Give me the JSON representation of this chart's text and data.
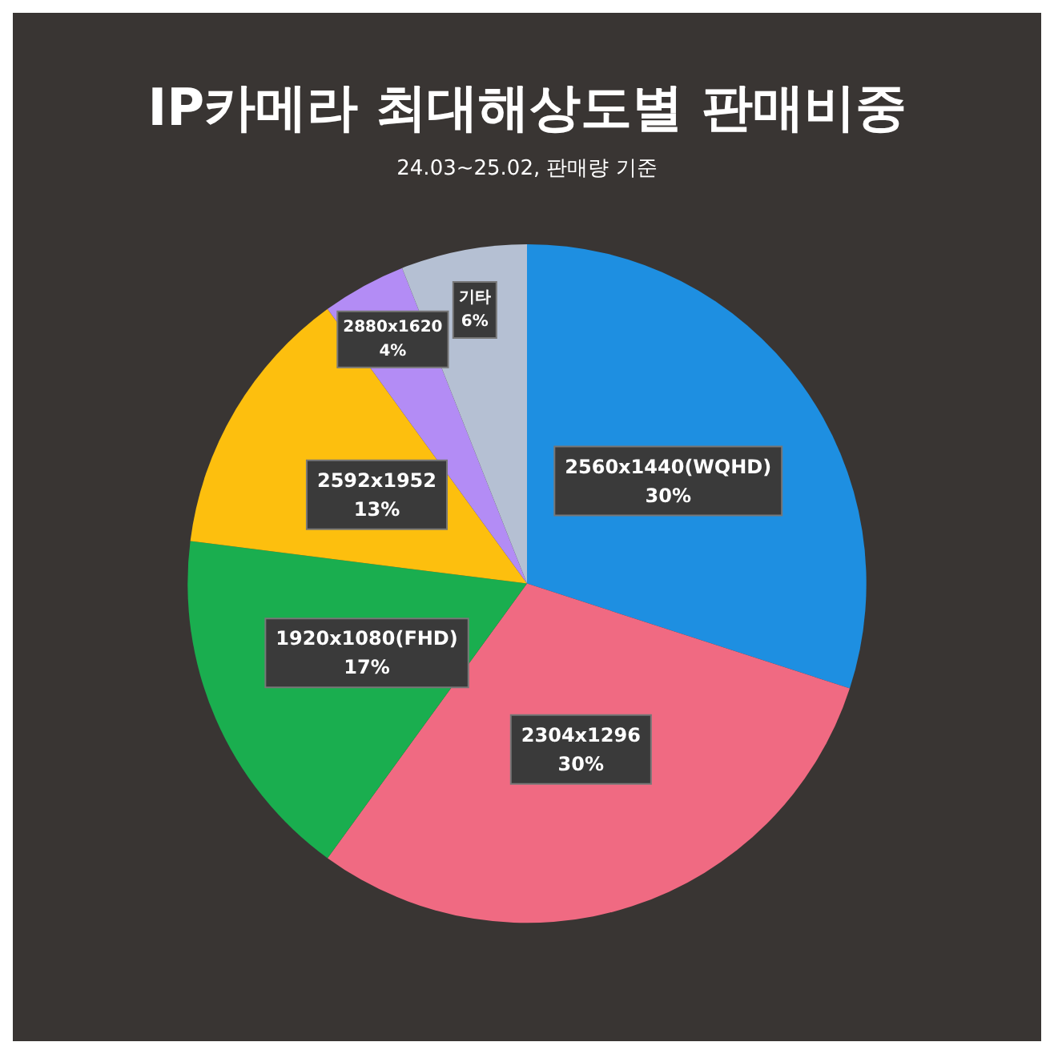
{
  "chart_data": {
    "type": "pie",
    "title": "IP카메라 최대해상도별 판매비중",
    "subtitle": "24.03~25.02, 판매량 기준",
    "categories": [
      "2560x1440(WQHD)",
      "2304x1296",
      "1920x1080(FHD)",
      "2592x1952",
      "2880x1620",
      "기타"
    ],
    "values": [
      30,
      30,
      17,
      13,
      4,
      6
    ],
    "value_labels": [
      "30%",
      "30%",
      "17%",
      "13%",
      "4%",
      "6%"
    ],
    "colors": [
      "#1e8fe1",
      "#f06a82",
      "#1aae4f",
      "#fdbf0e",
      "#b38cf5",
      "#b5c0d3"
    ],
    "legend": false
  }
}
